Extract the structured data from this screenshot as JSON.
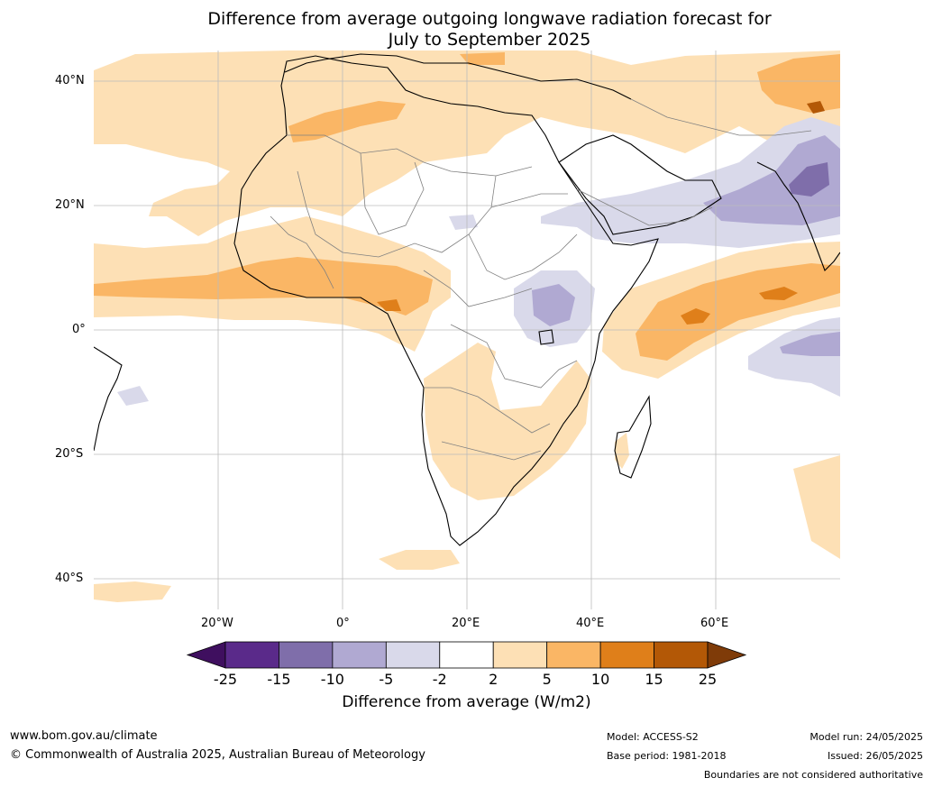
{
  "title": {
    "line1": "Difference from average outgoing longwave radiation forecast for",
    "line2": "July to September 2025"
  },
  "map": {
    "lat_labels": [
      "40°N",
      "20°N",
      "0°",
      "20°S",
      "40°S"
    ],
    "lon_labels": [
      "20°W",
      "0°",
      "20°E",
      "40°E",
      "60°E"
    ]
  },
  "colorbar": {
    "ticks": [
      "-25",
      "-15",
      "-10",
      "-5",
      "-2",
      "2",
      "5",
      "10",
      "15",
      "25"
    ],
    "colors": [
      "#3f0f5f",
      "#5a2a8a",
      "#7f6eaa",
      "#b0a9d2",
      "#d9d9ea",
      "#ffffff",
      "#fde0b5",
      "#fab665",
      "#df7f1a",
      "#b35806",
      "#7f3b08"
    ],
    "label": "Difference from average (W/m2)"
  },
  "footer": {
    "website": "www.bom.gov.au/climate",
    "copyright": "© Commonwealth of Australia 2025, Australian Bureau of Meteorology",
    "model": "Model: ACCESS-S2",
    "base_period": "Base period: 1981-2018",
    "model_run": "Model run: 24/05/2025",
    "issued": "Issued: 26/05/2025",
    "disclaimer": "Boundaries are not considered authoritative"
  }
}
